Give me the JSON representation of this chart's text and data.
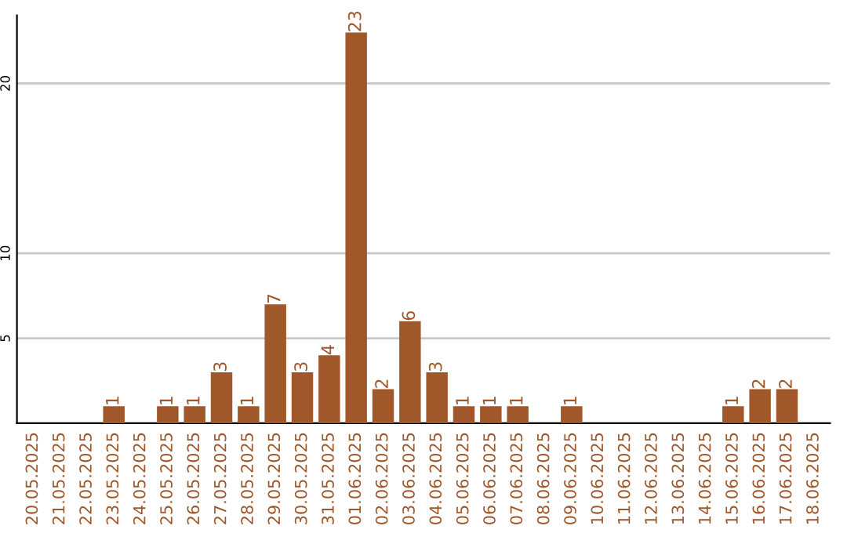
{
  "chart_data": {
    "type": "bar",
    "categories": [
      "20.05.2025",
      "21.05.2025",
      "22.05.2025",
      "23.05.2025",
      "24.05.2025",
      "25.05.2025",
      "26.05.2025",
      "27.05.2025",
      "28.05.2025",
      "29.05.2025",
      "30.05.2025",
      "31.05.2025",
      "01.06.2025",
      "02.06.2025",
      "03.06.2025",
      "04.06.2025",
      "05.06.2025",
      "06.06.2025",
      "07.06.2025",
      "08.06.2025",
      "09.06.2025",
      "10.06.2025",
      "11.06.2025",
      "12.06.2025",
      "13.06.2025",
      "14.06.2025",
      "15.06.2025",
      "16.06.2025",
      "17.06.2025",
      "18.06.2025"
    ],
    "values": [
      0,
      0,
      0,
      1,
      0,
      1,
      1,
      3,
      1,
      7,
      3,
      4,
      23,
      2,
      6,
      3,
      1,
      1,
      1,
      0,
      1,
      0,
      0,
      0,
      0,
      0,
      1,
      2,
      2,
      0
    ],
    "value_labels": [
      null,
      null,
      null,
      "1",
      null,
      "1",
      "1",
      "3",
      "1",
      "7",
      "3",
      "4",
      "23",
      "2",
      "6",
      "3",
      "1",
      "1",
      "1",
      null,
      "1",
      null,
      null,
      null,
      null,
      null,
      "1",
      "2",
      "2",
      null
    ],
    "color": "#a0572a",
    "ylim": [
      0,
      24
    ],
    "yticks": [
      5,
      10,
      20
    ],
    "grid": "y"
  }
}
